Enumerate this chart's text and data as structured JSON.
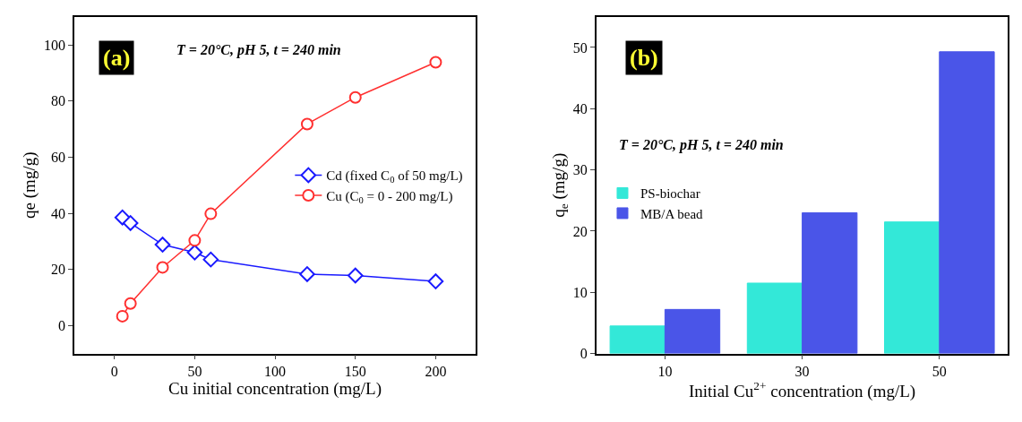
{
  "chart_data": [
    {
      "type": "line",
      "xlabel": "Cu initial concentration (mg/L)",
      "ylabel": "qe (mg/g)",
      "x": [
        5,
        10,
        30,
        50,
        60,
        120,
        150,
        200
      ],
      "xlim": [
        -25,
        225
      ],
      "xticks": [
        0,
        50,
        100,
        150,
        200
      ],
      "ylim": [
        -10,
        110
      ],
      "yticks": [
        0,
        20,
        40,
        60,
        80,
        100
      ],
      "grid": false,
      "legend": "right",
      "line_style": "solid",
      "series": [
        {
          "name": "Cd (fixed C$_{0}$ of 50 mg/L)",
          "color": "#1a1aff",
          "marker": "diamond",
          "values": [
            38.5,
            36.5,
            28.8,
            26.0,
            23.5,
            18.3,
            17.8,
            15.7
          ]
        },
        {
          "name": "Cu (C$_{0}$ = 0 - 200 mg/L)",
          "color": "#ff3030",
          "marker": "circle",
          "values": [
            3.3,
            7.8,
            20.7,
            30.3,
            39.8,
            71.8,
            81.3,
            93.8
          ]
        }
      ],
      "annotations": [
        "(a)",
        "T = 20°C, pH 5, t = 240 min"
      ]
    },
    {
      "type": "bar",
      "xlabel": "Initial Cu$^{2+}$ concentration (mg/L)",
      "ylabel": "q$_{e}$ (mg/g)",
      "categories": [
        "10",
        "30",
        "50"
      ],
      "ylim": [
        0,
        55
      ],
      "yticks": [
        0,
        10,
        20,
        30,
        40,
        50
      ],
      "grid": false,
      "legend": "left",
      "series": [
        {
          "name": "PS-biochar",
          "color": "#33e8d8",
          "values": [
            4.5,
            11.5,
            21.5
          ]
        },
        {
          "name": "MB/A bead",
          "color": "#4a55e8",
          "values": [
            7.2,
            23.0,
            49.3
          ]
        }
      ],
      "annotations": [
        "(b)",
        "T = 20°C, pH 5, t = 240 min"
      ]
    }
  ]
}
